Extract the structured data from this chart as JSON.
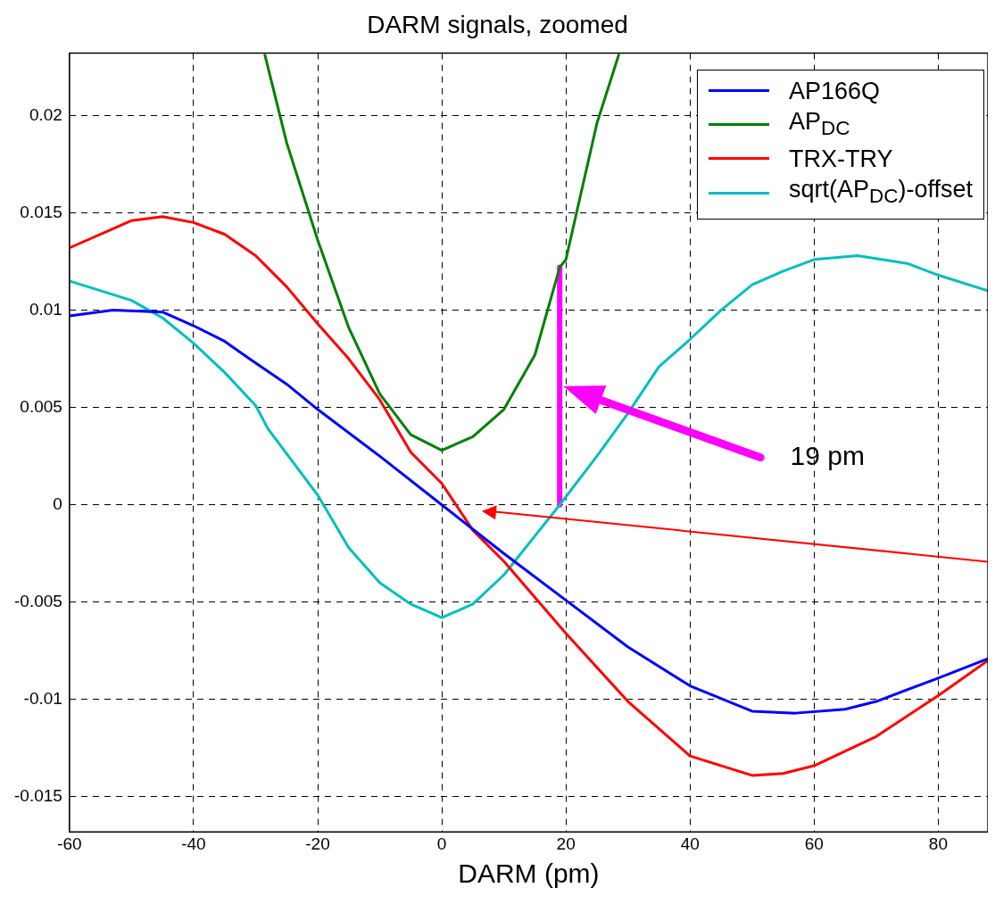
{
  "chart_data": {
    "type": "line",
    "title": "DARM signals, zoomed",
    "xlabel": "DARM (pm)",
    "xlim": [
      -60,
      88
    ],
    "xticks": [
      -60,
      -40,
      -20,
      0,
      20,
      40,
      60,
      80
    ],
    "ylim": [
      -0.0168,
      0.0232
    ],
    "yticks": [
      -0.015,
      -0.01,
      -0.005,
      0,
      0.005,
      0.01,
      0.015,
      0.02
    ],
    "grid": true,
    "legend": "top right",
    "line_style": "solid",
    "marker": "none",
    "annotations": [
      "19 pm"
    ],
    "series": [
      {
        "name": "AP166Q",
        "color": "#0000ff",
        "x": [
          -60,
          -53,
          -45,
          -40,
          -35,
          -31,
          -25,
          -20,
          -10,
          0,
          10,
          20,
          30,
          40,
          50,
          57,
          65,
          70,
          80,
          88
        ],
        "values": [
          0.0097,
          0.01,
          0.0099,
          0.0092,
          0.0084,
          0.0075,
          0.0062,
          0.0049,
          0.0025,
          0,
          -0.0025,
          -0.0049,
          -0.0073,
          -0.0093,
          -0.0106,
          -0.0107,
          -0.0105,
          -0.0101,
          -0.0089,
          -0.0079
        ]
      },
      {
        "name": "AP$_{DC}$",
        "color": "#008000",
        "x": [
          -28.5,
          -25,
          -20,
          -15,
          -10,
          -5,
          0,
          5,
          10,
          15,
          19,
          20,
          25,
          28.5
        ],
        "values": [
          0.0231,
          0.0186,
          0.0136,
          0.0091,
          0.0057,
          0.0036,
          0.0028,
          0.0035,
          0.0049,
          0.0077,
          0.0122,
          0.0126,
          0.0196,
          0.0231
        ]
      },
      {
        "name": "TRX-TRY",
        "color": "#ff0000",
        "x": [
          -60,
          -50,
          -45,
          -40,
          -35,
          -30,
          -25,
          -20,
          -15,
          -10,
          -5,
          0,
          5,
          10,
          20,
          30,
          40,
          50,
          55,
          60,
          70,
          80,
          88
        ],
        "values": [
          0.0132,
          0.0146,
          0.0148,
          0.0145,
          0.0139,
          0.0128,
          0.0112,
          0.0093,
          0.0075,
          0.0054,
          0.0027,
          0.0011,
          -0.0013,
          -0.0029,
          -0.0066,
          -0.0101,
          -0.0129,
          -0.0139,
          -0.0138,
          -0.0134,
          -0.0119,
          -0.0098,
          -0.008
        ]
      },
      {
        "name": "sqrt(AP$_{DC}$)-offset",
        "color": "#00bfbf",
        "x": [
          -60,
          -50,
          -45,
          -40,
          -35,
          -30,
          -28,
          -20,
          -15,
          -10,
          -5,
          0,
          5,
          10,
          15,
          19,
          25,
          30,
          35,
          40,
          45,
          50,
          55,
          60,
          67,
          75,
          80,
          88
        ],
        "values": [
          0.0115,
          0.0105,
          0.0096,
          0.0083,
          0.0068,
          0.0051,
          0.0039,
          0.0005,
          -0.0022,
          -0.004,
          -0.0051,
          -0.0058,
          -0.0051,
          -0.0036,
          -0.0016,
          0,
          0.0025,
          0.0047,
          0.0071,
          0.0085,
          0.01,
          0.0113,
          0.012,
          0.0126,
          0.0128,
          0.0124,
          0.0118,
          0.011
        ]
      },
      {
        "color": "#ff00ff",
        "x": [
          19,
          19
        ],
        "values": [
          0,
          0.0122
        ]
      }
    ]
  }
}
